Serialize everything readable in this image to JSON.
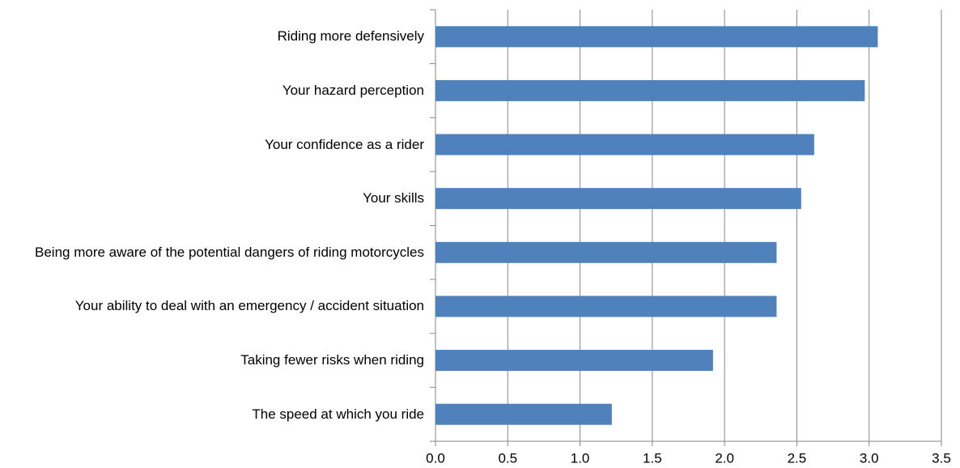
{
  "chart_data": {
    "type": "bar",
    "orientation": "horizontal",
    "categories": [
      "Riding more defensively",
      "Your hazard perception",
      "Your confidence as a rider",
      "Your skills",
      "Being more aware of the potential dangers of riding motorcycles",
      "Your ability to deal with an emergency / accident situation",
      "Taking fewer risks when riding",
      "The speed at which you ride"
    ],
    "values": [
      3.06,
      2.97,
      2.62,
      2.53,
      2.36,
      2.36,
      1.92,
      1.22
    ],
    "color": "#4f81bd",
    "xlim": [
      0,
      3.5
    ],
    "xticks": [
      {
        "value": 0,
        "label": "0.0"
      },
      0.5,
      {
        "value": 1,
        "label": "1.0"
      },
      1.5,
      {
        "value": 2,
        "label": "2.0"
      },
      2.5,
      {
        "value": 3,
        "label": "3.0"
      },
      3.5
    ],
    "grid": true
  }
}
